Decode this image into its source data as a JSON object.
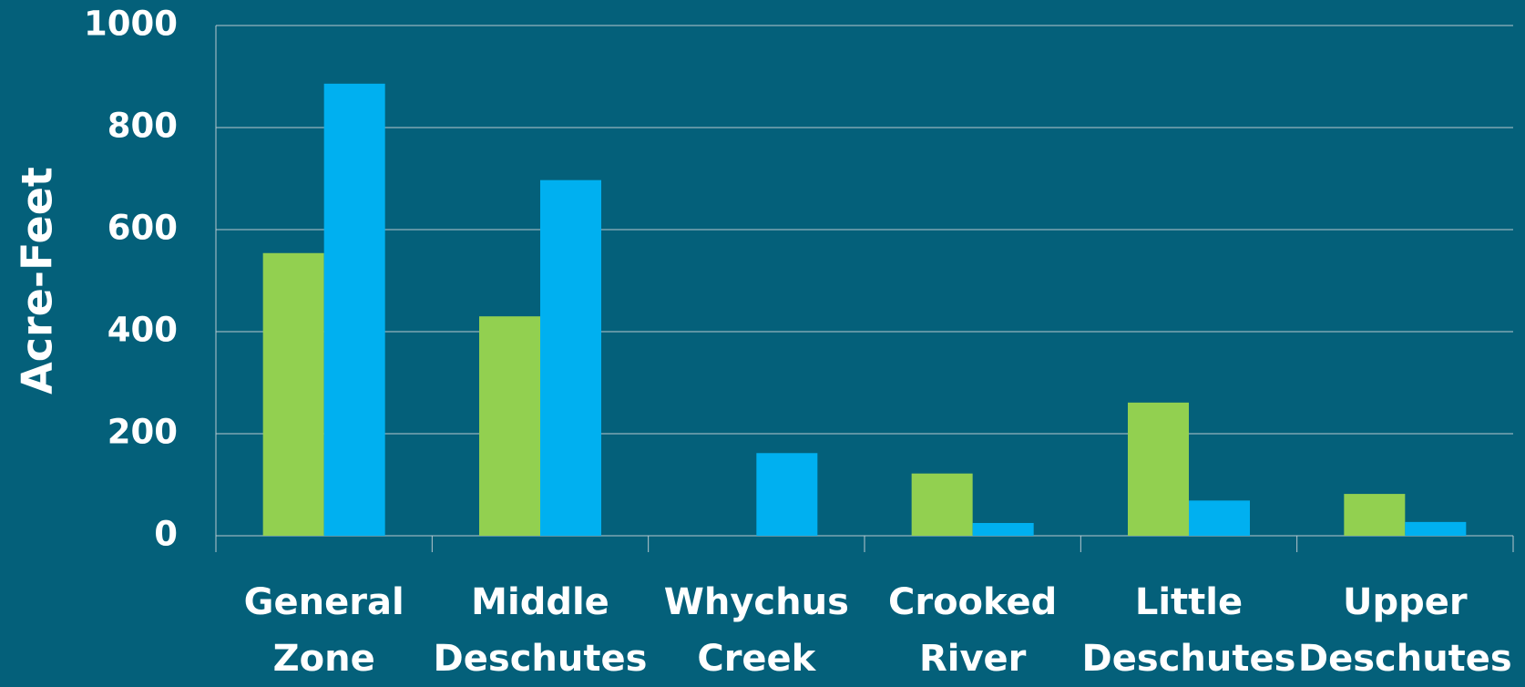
{
  "chart_data": {
    "type": "bar",
    "y_label": "Acre-Feet",
    "categories": [
      "General Zone",
      "Middle Deschutes",
      "Whychus Creek",
      "Crooked River",
      "Little Deschutes",
      "Upper Deschutes"
    ],
    "series": [
      {
        "color": "#92d050",
        "values": [
          554,
          430,
          null,
          122,
          261,
          82
        ]
      },
      {
        "color": "#00b0f0",
        "values": [
          886,
          697,
          162,
          25,
          69,
          27
        ]
      }
    ],
    "ylim": [
      0,
      1000
    ],
    "yticks": [
      0,
      200,
      400,
      600,
      800,
      1000
    ],
    "grid": true
  }
}
